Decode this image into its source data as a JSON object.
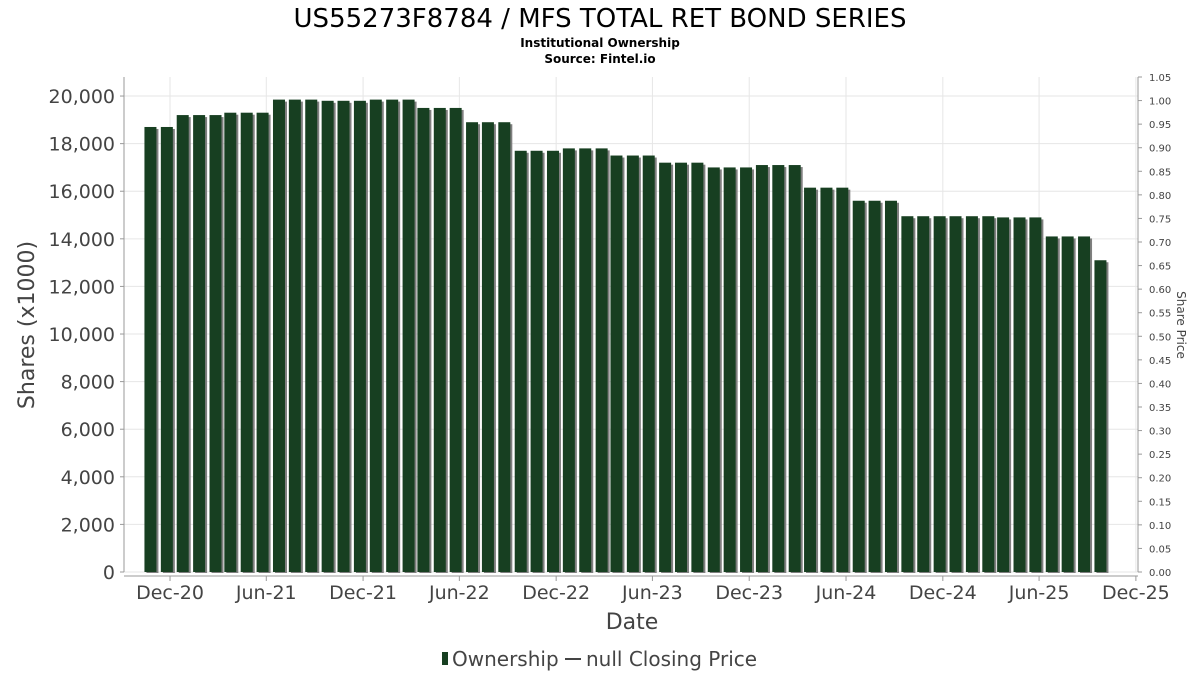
{
  "colors": {
    "bar": "#173f21",
    "bar_shadow": "#7f7f7f",
    "grid": "#e6e6e6",
    "axis": "#999999",
    "text": "#444444"
  },
  "chart_data": {
    "type": "bar",
    "title": "US55273F8784 / MFS TOTAL RET BOND SERIES",
    "subtitle_1": "Institutional Ownership",
    "subtitle_2": "Source: Fintel.io",
    "xlabel": "Date",
    "ylabel": "Shares (x1000)",
    "y2label": "Share Price",
    "ylim": [
      0,
      20800
    ],
    "y2lim": [
      0,
      1.05
    ],
    "x_range": [
      "2020-09-05",
      "2025-12-05"
    ],
    "yticks": [
      0,
      2000,
      4000,
      6000,
      8000,
      10000,
      12000,
      14000,
      16000,
      18000,
      20000
    ],
    "ytick_labels": [
      "0",
      "2,000",
      "4,000",
      "6,000",
      "8,000",
      "10,000",
      "12,000",
      "14,000",
      "16,000",
      "18,000",
      "20,000"
    ],
    "y2ticks": [
      "0.00",
      "0.05",
      "0.10",
      "0.15",
      "0.20",
      "0.25",
      "0.30",
      "0.35",
      "0.40",
      "0.45",
      "0.50",
      "0.55",
      "0.60",
      "0.65",
      "0.70",
      "0.75",
      "0.80",
      "0.85",
      "0.90",
      "0.95",
      "1.00",
      "1.05"
    ],
    "xticks": [
      {
        "date": "2020-12-01",
        "label": "Dec-20"
      },
      {
        "date": "2021-06-01",
        "label": "Jun-21"
      },
      {
        "date": "2021-12-01",
        "label": "Dec-21"
      },
      {
        "date": "2022-06-01",
        "label": "Jun-22"
      },
      {
        "date": "2022-12-01",
        "label": "Dec-22"
      },
      {
        "date": "2023-06-01",
        "label": "Jun-23"
      },
      {
        "date": "2023-12-01",
        "label": "Dec-23"
      },
      {
        "date": "2024-06-01",
        "label": "Jun-24"
      },
      {
        "date": "2024-12-01",
        "label": "Dec-24"
      },
      {
        "date": "2025-06-01",
        "label": "Jun-25"
      },
      {
        "date": "2025-12-01",
        "label": "Dec-25"
      }
    ],
    "grid": true,
    "legend_position": "bottom",
    "series": [
      {
        "name": "Ownership",
        "type": "bar",
        "x": [
          "2020-10-25",
          "2020-11-25",
          "2020-12-25",
          "2021-01-25",
          "2021-02-25",
          "2021-03-25",
          "2021-04-25",
          "2021-05-25",
          "2021-06-25",
          "2021-07-25",
          "2021-08-25",
          "2021-09-25",
          "2021-10-25",
          "2021-11-25",
          "2021-12-25",
          "2022-01-25",
          "2022-02-25",
          "2022-03-25",
          "2022-04-25",
          "2022-05-25",
          "2022-06-25",
          "2022-07-25",
          "2022-08-25",
          "2022-09-25",
          "2022-10-25",
          "2022-11-25",
          "2022-12-25",
          "2023-01-25",
          "2023-02-25",
          "2023-03-25",
          "2023-04-25",
          "2023-05-25",
          "2023-06-25",
          "2023-07-25",
          "2023-08-25",
          "2023-09-25",
          "2023-10-25",
          "2023-11-25",
          "2023-12-25",
          "2024-01-25",
          "2024-02-25",
          "2024-03-25",
          "2024-04-25",
          "2024-05-25",
          "2024-06-25",
          "2024-07-25",
          "2024-08-25",
          "2024-09-25",
          "2024-10-25",
          "2024-11-25",
          "2024-12-25",
          "2025-01-25",
          "2025-02-25",
          "2025-03-25",
          "2025-04-25",
          "2025-05-25",
          "2025-06-25",
          "2025-07-25",
          "2025-08-25",
          "2025-09-25"
        ],
        "values": [
          18700,
          18700,
          19200,
          19200,
          19200,
          19300,
          19300,
          19300,
          19850,
          19850,
          19850,
          19800,
          19800,
          19800,
          19850,
          19850,
          19850,
          19500,
          19500,
          19500,
          18900,
          18900,
          18900,
          17700,
          17700,
          17700,
          17800,
          17800,
          17800,
          17500,
          17500,
          17500,
          17200,
          17200,
          17200,
          17000,
          17000,
          17000,
          17100,
          17100,
          17100,
          16150,
          16150,
          16150,
          15600,
          15600,
          15600,
          14950,
          14950,
          14950,
          14950,
          14950,
          14950,
          14900,
          14900,
          14900,
          14100,
          14100,
          14100,
          13100
        ]
      },
      {
        "name": "null Closing Price",
        "type": "line",
        "values": []
      }
    ]
  }
}
